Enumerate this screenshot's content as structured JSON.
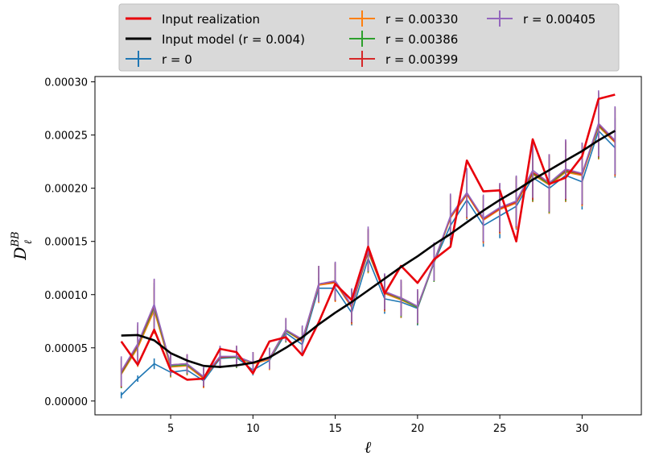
{
  "chart_data": {
    "type": "line",
    "title": "",
    "xlabel": "ℓ",
    "ylabel": "D",
    "ylabel_superscript": "BB",
    "ylabel_subscript": "ℓ",
    "xlim": [
      0.4,
      33.6
    ],
    "ylim": [
      -1.3e-05,
      0.000305
    ],
    "xticks": [
      5,
      10,
      15,
      20,
      25,
      30
    ],
    "xtick_labels": [
      "5",
      "10",
      "15",
      "20",
      "25",
      "30"
    ],
    "yticks": [
      0,
      5e-05,
      0.0001,
      0.00015,
      0.0002,
      0.00025,
      0.0003
    ],
    "ytick_labels": [
      "0.00000",
      "0.00005",
      "0.00010",
      "0.00015",
      "0.00020",
      "0.00025",
      "0.00030"
    ],
    "grid": false,
    "legend_position": "above plot, 3 columns",
    "x": [
      2,
      3,
      4,
      5,
      6,
      7,
      8,
      9,
      10,
      11,
      12,
      13,
      14,
      15,
      16,
      17,
      18,
      19,
      20,
      21,
      22,
      23,
      24,
      25,
      26,
      27,
      28,
      29,
      30,
      31,
      32
    ],
    "series": [
      {
        "name": "Input realization",
        "color": "#e8000b",
        "style": "line",
        "values": [
          5.6e-05,
          3.4e-05,
          6.7e-05,
          2.9e-05,
          2e-05,
          2.1e-05,
          4.9e-05,
          4.6e-05,
          2.6e-05,
          5.6e-05,
          6e-05,
          4.3e-05,
          7.4e-05,
          0.00011,
          9.5e-05,
          0.000145,
          0.000101,
          0.000127,
          0.000111,
          0.000133,
          0.000145,
          0.000226,
          0.000197,
          0.000198,
          0.00015,
          0.000246,
          0.000204,
          0.00021,
          0.00023,
          0.000284,
          0.000288
        ]
      },
      {
        "name": "Input model (r = 0.004)",
        "color": "#000000",
        "style": "line",
        "values": [
          6.15e-05,
          6.2e-05,
          5.7e-05,
          4.5e-05,
          3.8e-05,
          3.3e-05,
          3.2e-05,
          3.35e-05,
          3.6e-05,
          4.1e-05,
          5e-05,
          6e-05,
          7.2e-05,
          8.3e-05,
          9.3e-05,
          0.000104,
          0.000115,
          0.000126,
          0.000136,
          0.000147,
          0.000157,
          0.000168,
          0.000179,
          0.000189,
          0.000198,
          0.000208,
          0.000217,
          0.000226,
          0.000235,
          0.000245,
          0.000254
        ]
      },
      {
        "name": "r = 0",
        "color": "#1f77b4",
        "style": "errorbar",
        "values": [
          5.5e-06,
          2.1e-05,
          3.5e-05,
          2.7e-05,
          2.9e-05,
          1.9e-05,
          4e-05,
          4.1e-05,
          2.9e-05,
          3.8e-05,
          6.4e-05,
          5.3e-05,
          0.000106,
          0.000106,
          8.3e-05,
          0.000134,
          9.6e-05,
          9.3e-05,
          8.7e-05,
          0.00013,
          0.000165,
          0.000189,
          0.000165,
          0.000174,
          0.000183,
          0.00021,
          0.0002,
          0.000212,
          0.000206,
          0.000254,
          0.000238
        ],
        "errors": [
          3e-06,
          3e-06,
          5e-06,
          4e-06,
          4e-06,
          4e-06,
          5e-06,
          5e-06,
          5e-06,
          6e-06,
          6e-06,
          8e-06,
          1e-05,
          1.1e-05,
          1.2e-05,
          1.3e-05,
          1.4e-05,
          1.5e-05,
          1.6e-05,
          1.7e-05,
          1.8e-05,
          1.9e-05,
          2e-05,
          2.1e-05,
          2.2e-05,
          2.3e-05,
          2.4e-05,
          2.5e-05,
          2.6e-05,
          2.7e-05,
          2.8e-05
        ]
      },
      {
        "name": "r = 0.00330",
        "color": "#ff7f0e",
        "style": "errorbar",
        "values": [
          2.5e-05,
          5e-05,
          8.5e-05,
          3.2e-05,
          3.3e-05,
          2.1e-05,
          4.1e-05,
          4.1e-05,
          3.5e-05,
          3.9e-05,
          6.6e-05,
          5.6e-05,
          0.000109,
          0.000111,
          8.8e-05,
          0.00014,
          0.000101,
          9.5e-05,
          8.8e-05,
          0.00013,
          0.000172,
          0.000194,
          0.00017,
          0.00018,
          0.000186,
          0.000213,
          0.000203,
          0.000215,
          0.000212,
          0.000258,
          0.000243
        ],
        "errors": [
          1.3e-05,
          1.8e-05,
          2.2e-05,
          1e-05,
          9e-06,
          9e-06,
          1e-05,
          1e-05,
          1e-05,
          1e-05,
          1.1e-05,
          1.3e-05,
          1.7e-05,
          1.8e-05,
          1.6e-05,
          2e-05,
          1.7e-05,
          1.7e-05,
          1.6e-05,
          1.8e-05,
          2.1e-05,
          2.3e-05,
          2.2e-05,
          2.3e-05,
          2.4e-05,
          2.6e-05,
          2.7e-05,
          2.8e-05,
          2.9e-05,
          3.1e-05,
          3.2e-05
        ]
      },
      {
        "name": "r = 0.00386",
        "color": "#2ca02c",
        "style": "errorbar",
        "values": [
          2.6e-05,
          5.2e-05,
          8.8e-05,
          3.3e-05,
          3.4e-05,
          2.2e-05,
          4.1e-05,
          4.1e-05,
          3.6e-05,
          4e-05,
          6.6e-05,
          5.7e-05,
          0.00011,
          0.000112,
          8.9e-05,
          0.000141,
          0.000102,
          9.6e-05,
          8.8e-05,
          0.00013,
          0.000173,
          0.000195,
          0.000171,
          0.000181,
          0.000187,
          0.000214,
          0.000204,
          0.000216,
          0.000213,
          0.000259,
          0.000244
        ],
        "errors": [
          1.4e-05,
          1.9e-05,
          2.3e-05,
          1e-05,
          9e-06,
          9e-06,
          1e-05,
          1e-05,
          1e-05,
          1e-05,
          1.1e-05,
          1.3e-05,
          1.7e-05,
          1.8e-05,
          1.6e-05,
          2e-05,
          1.7e-05,
          1.7e-05,
          1.6e-05,
          1.8e-05,
          2.1e-05,
          2.3e-05,
          2.2e-05,
          2.3e-05,
          2.4e-05,
          2.6e-05,
          2.7e-05,
          2.8e-05,
          2.9e-05,
          3.1e-05,
          3.2e-05
        ]
      },
      {
        "name": "r = 0.00399",
        "color": "#d62728",
        "style": "errorbar",
        "values": [
          2.7e-05,
          5.3e-05,
          9e-05,
          3.4e-05,
          3.5e-05,
          2.2e-05,
          4.1e-05,
          4.2e-05,
          3.6e-05,
          4e-05,
          6.7e-05,
          5.7e-05,
          0.00011,
          0.000112,
          8.9e-05,
          0.000142,
          0.000102,
          9.7e-05,
          8.9e-05,
          0.000131,
          0.000173,
          0.000195,
          0.000171,
          0.000181,
          0.000187,
          0.000215,
          0.000205,
          0.000217,
          0.000213,
          0.00026,
          0.000244
        ],
        "errors": [
          1.4e-05,
          2e-05,
          2.4e-05,
          1e-05,
          9e-06,
          9e-06,
          1e-05,
          1e-05,
          1e-05,
          1e-05,
          1.1e-05,
          1.3e-05,
          1.7e-05,
          1.8e-05,
          1.6e-05,
          2e-05,
          1.7e-05,
          1.7e-05,
          1.6e-05,
          1.8e-05,
          2.1e-05,
          2.3e-05,
          2.2e-05,
          2.3e-05,
          2.4e-05,
          2.6e-05,
          2.7e-05,
          2.8e-05,
          2.9e-05,
          3.1e-05,
          3.2e-05
        ]
      },
      {
        "name": "r = 0.00405",
        "color": "#9467bd",
        "style": "errorbar",
        "values": [
          2.8e-05,
          5.4e-05,
          9.1e-05,
          3.4e-05,
          3.5e-05,
          2.3e-05,
          4.2e-05,
          4.2e-05,
          3.6e-05,
          4e-05,
          6.7e-05,
          5.8e-05,
          0.00011,
          0.000113,
          9e-05,
          0.000143,
          0.000103,
          9.7e-05,
          8.9e-05,
          0.000131,
          0.000174,
          0.000196,
          0.000172,
          0.000182,
          0.000188,
          0.000217,
          0.000205,
          0.000218,
          0.000214,
          0.000261,
          0.000245
        ],
        "errors": [
          1.4e-05,
          2e-05,
          2.4e-05,
          1e-05,
          9e-06,
          9e-06,
          1e-05,
          1e-05,
          1e-05,
          1e-05,
          1.1e-05,
          1.3e-05,
          1.7e-05,
          1.8e-05,
          1.6e-05,
          2.1e-05,
          1.7e-05,
          1.7e-05,
          1.6e-05,
          1.8e-05,
          2.1e-05,
          2.3e-05,
          2.2e-05,
          2.3e-05,
          2.4e-05,
          2.6e-05,
          2.7e-05,
          2.8e-05,
          2.9e-05,
          3.1e-05,
          3.2e-05
        ]
      }
    ]
  }
}
